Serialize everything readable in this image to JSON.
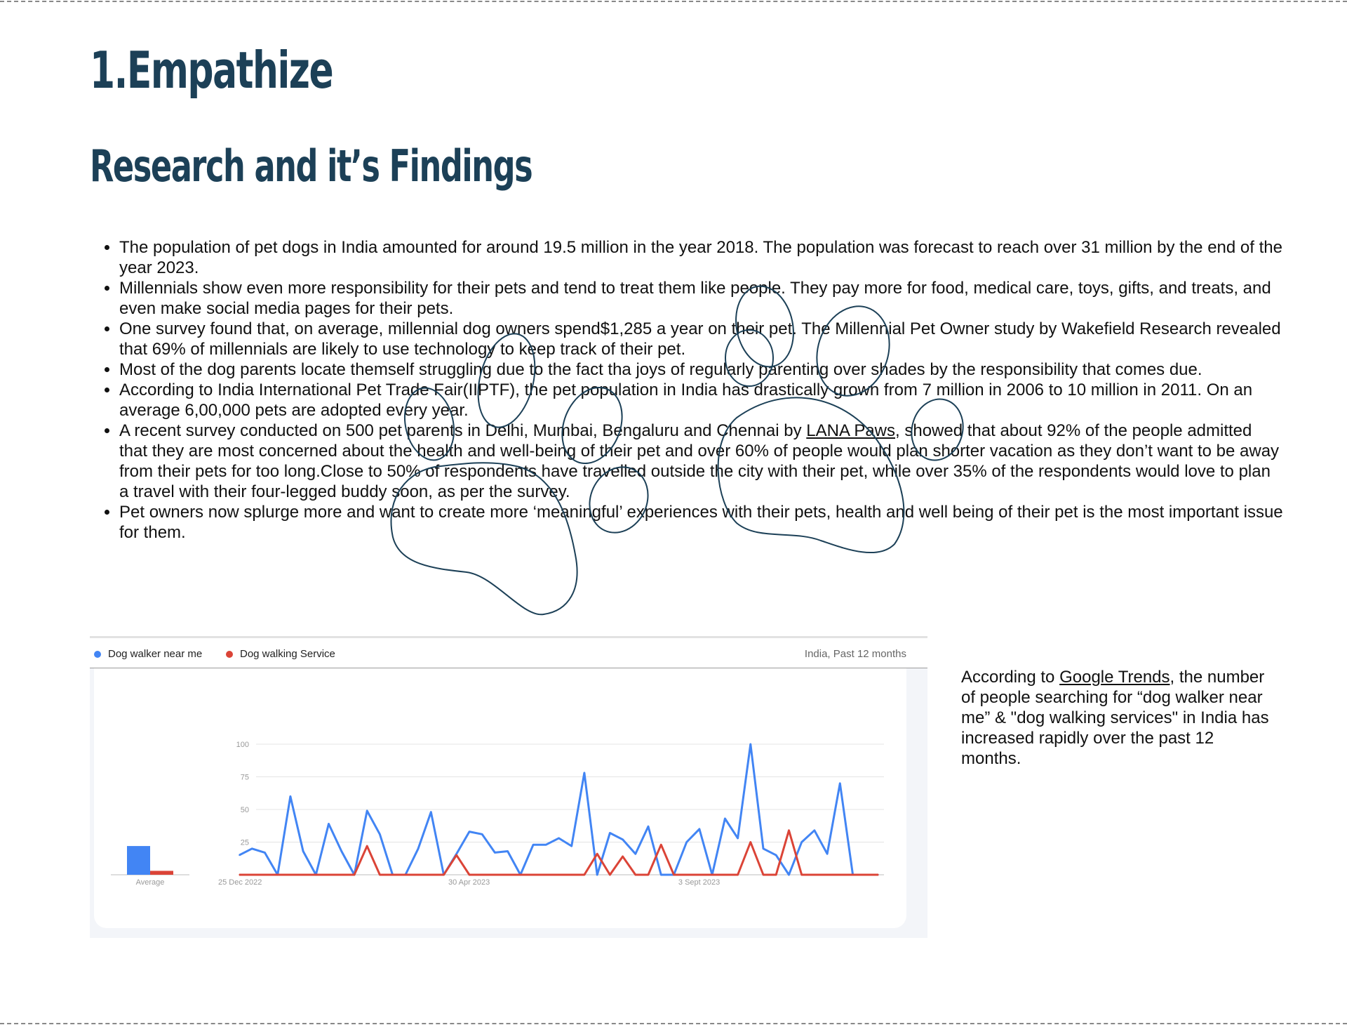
{
  "page": {
    "title": "1.Empathize",
    "subtitle": "Research and it’s Findings"
  },
  "findings": [
    {
      "text": "The population of pet dogs in India amounted for around 19.5 million in the year 2018. The population was forecast to reach over 31 million by the end of the year 2023."
    },
    {
      "text": "Millennials show even more responsibility for their pets and tend to treat them like people. They pay more for food, medical care, toys, gifts, and treats, and even make social media pages for their pets."
    },
    {
      "text": "One survey found that, on average, millennial dog owners spend$1,285 a year on their pet. The Millennial Pet Owner study by Wakefield Research revealed that 69% of millennials are likely to use technology to keep track of their pet."
    },
    {
      "text": "Most of the dog parents locate themself struggling due to the fact tha joys of regularly parenting over shades by the responsibility that comes due."
    },
    {
      "text": "According to India International Pet Trade Fair(IIPTF), the pet population in India has drastically grown from 7 million in 2006 to 10 million in 2011. On an average 6,00,000 pets are adopted every year."
    },
    {
      "text_before": "A recent survey conducted on 500 pet parents in Delhi, Mumbai, Bengaluru and Chennai by ",
      "link": "LANA Paws",
      "text_after": ", showed that about 92% of the people admitted that they are most concerned about the health and well-being of their pet and over 60% of people would plan shorter vacation as they don’t want to be away from their pets for too long.Close to 50% of respondents have travelled outside the city with their pet, while over 35% of the respondents would love to plan a travel with their four-legged buddy soon, as per the survey."
    },
    {
      "text": "Pet owners now splurge more and want to create more ‘meaningful’ experiences with their pets, health and well being of their pet is the most important issue for them."
    }
  ],
  "trends_embed": {
    "scope": "India, Past 12 months",
    "colors": {
      "series1": "#4285f4",
      "series2": "#db4437",
      "grid": "#e4e4e4",
      "tick": "#999999"
    }
  },
  "chart_data": {
    "type": "line",
    "ylim": [
      0,
      100
    ],
    "yticks": [
      "100",
      "75",
      "50",
      "25"
    ],
    "ytick_values": [
      100,
      75,
      50,
      25
    ],
    "xticks": [
      "25 Dec 2022",
      "30 Apr 2023",
      "3 Sept 2023"
    ],
    "xtick_index": [
      0,
      18,
      36
    ],
    "average_label": "Average",
    "average_values": [
      22,
      3
    ],
    "series": [
      {
        "name": "Dog walker near me",
        "values": [
          15,
          20,
          17,
          0,
          60,
          18,
          0,
          39,
          18,
          0,
          49,
          31,
          0,
          0,
          20,
          48,
          0,
          16,
          33,
          31,
          17,
          18,
          0,
          23,
          23,
          28,
          22,
          78,
          0,
          32,
          27,
          16,
          37,
          0,
          0,
          25,
          35,
          0,
          43,
          28,
          100,
          20,
          15,
          0,
          25,
          34,
          16,
          70,
          0,
          0,
          0
        ]
      },
      {
        "name": "Dog walking Service",
        "values": [
          0,
          0,
          0,
          0,
          0,
          0,
          0,
          0,
          0,
          0,
          22,
          0,
          0,
          0,
          0,
          0,
          0,
          15,
          0,
          0,
          0,
          0,
          0,
          0,
          0,
          0,
          0,
          0,
          16,
          0,
          14,
          0,
          0,
          23,
          0,
          0,
          0,
          0,
          0,
          0,
          25,
          0,
          0,
          34,
          0,
          0,
          0,
          0,
          0,
          0,
          0
        ]
      }
    ]
  },
  "side_note": {
    "before": "According to ",
    "link": "Google Trends",
    "after": ", the number of people searching for “dog walker near me” & \"dog walking services\" in India has increased rapidly over the past 12 months."
  }
}
